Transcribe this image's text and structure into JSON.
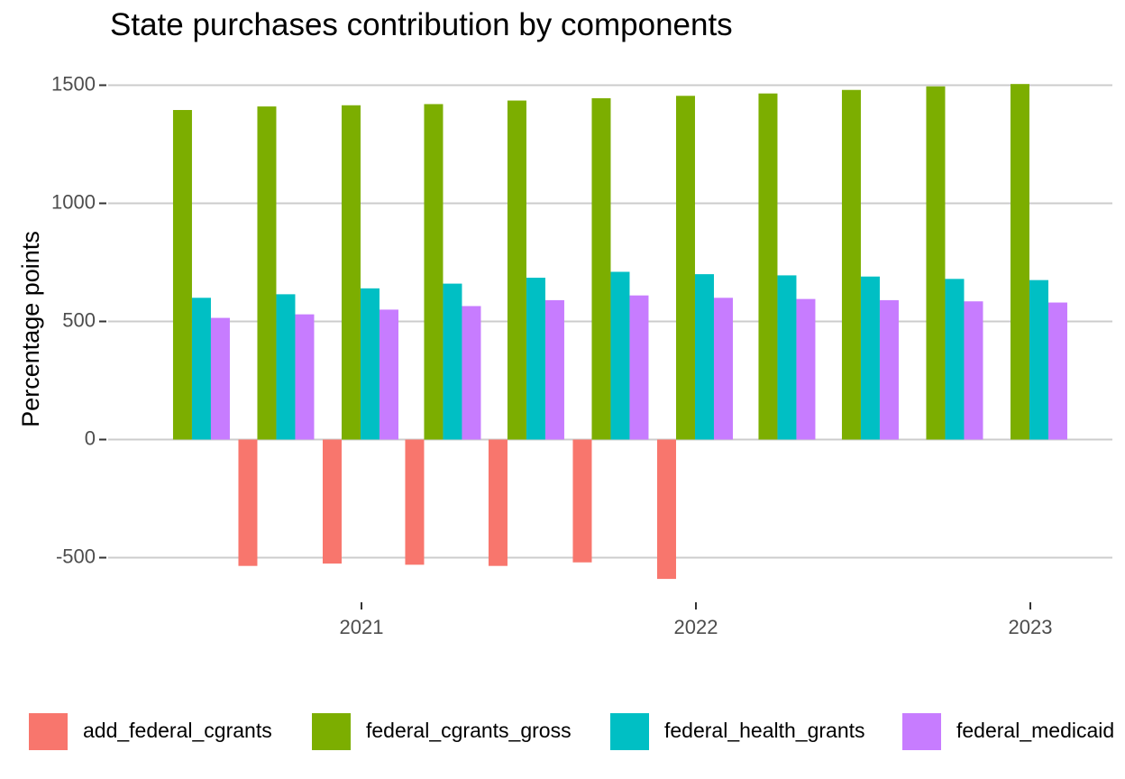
{
  "chart_data": {
    "type": "bar",
    "title": "State purchases contribution by components",
    "xlabel": "",
    "ylabel": "Percentage points",
    "x": [
      "2020-06-30",
      "2020-09-30",
      "2020-12-31",
      "2021-03-31",
      "2021-06-30",
      "2021-09-30",
      "2021-12-31",
      "2022-03-31",
      "2022-06-30",
      "2022-09-30",
      "2022-12-31"
    ],
    "x_ticks": [
      "2021",
      "2022",
      "2023"
    ],
    "y_ticks": [
      -500,
      0,
      500,
      1000,
      1500
    ],
    "ylim": [
      -610,
      1520
    ],
    "grid": true,
    "legend_position": "bottom",
    "series": [
      {
        "name": "add_federal_cgrants",
        "color": "#F8766D",
        "values": [
          null,
          -535,
          -525,
          -530,
          -535,
          -520,
          -590,
          null,
          null,
          null,
          null
        ]
      },
      {
        "name": "federal_cgrants_gross",
        "color": "#7CAE00",
        "values": [
          1395,
          1410,
          1415,
          1420,
          1435,
          1445,
          1455,
          1465,
          1480,
          1495,
          1505
        ]
      },
      {
        "name": "federal_health_grants",
        "color": "#00BFC4",
        "values": [
          600,
          615,
          640,
          660,
          685,
          710,
          700,
          695,
          690,
          680,
          675
        ]
      },
      {
        "name": "federal_medicaid",
        "color": "#C77CFF",
        "values": [
          515,
          530,
          550,
          565,
          590,
          610,
          600,
          595,
          590,
          585,
          580
        ]
      }
    ]
  }
}
